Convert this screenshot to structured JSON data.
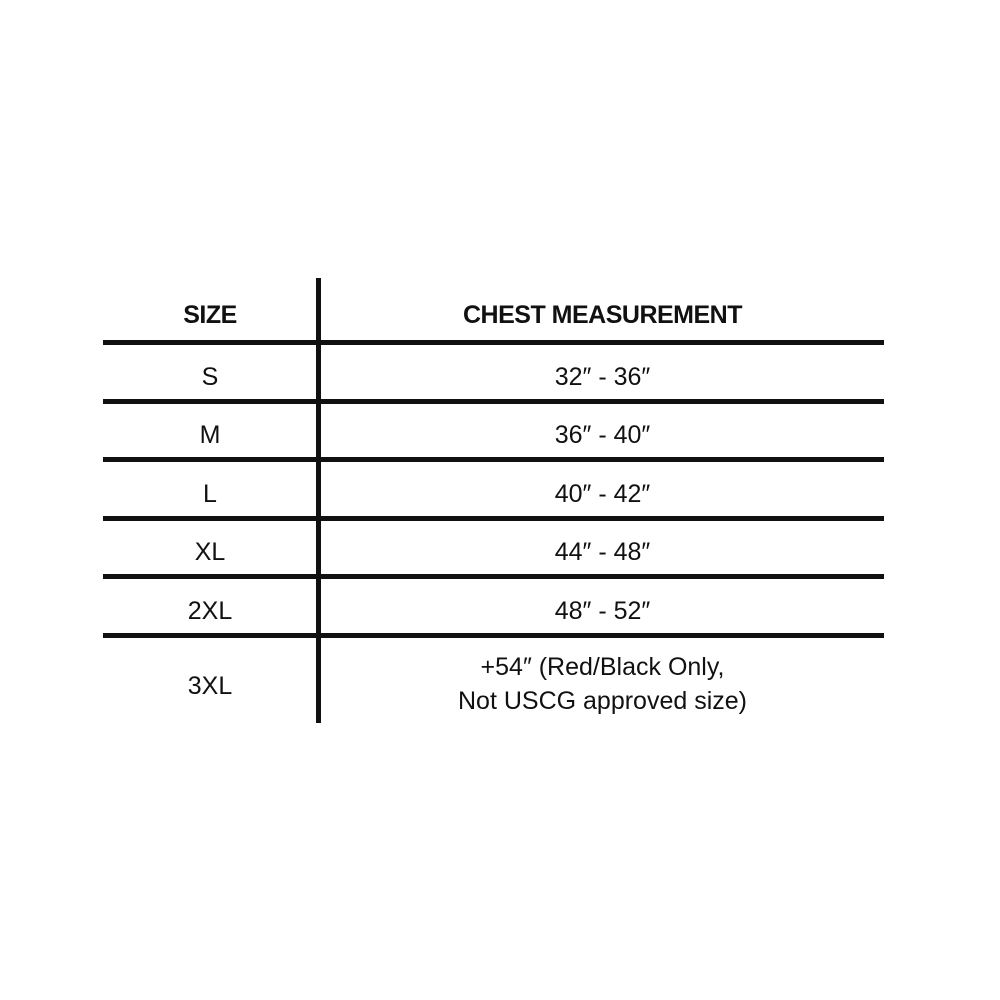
{
  "table": {
    "headers": [
      "SIZE",
      "CHEST MEASUREMENT"
    ],
    "rows": [
      {
        "size": "S",
        "chest": "32″ - 36″"
      },
      {
        "size": "M",
        "chest": "36″ - 40″"
      },
      {
        "size": "L",
        "chest": "40″ - 42″"
      },
      {
        "size": "XL",
        "chest": "44″ - 48″"
      },
      {
        "size": "2XL",
        "chest": "48″ - 52″"
      },
      {
        "size": "3XL",
        "chest_line1": "+54″ (Red/Black Only,",
        "chest_line2": "Not USCG approved size)"
      }
    ]
  }
}
